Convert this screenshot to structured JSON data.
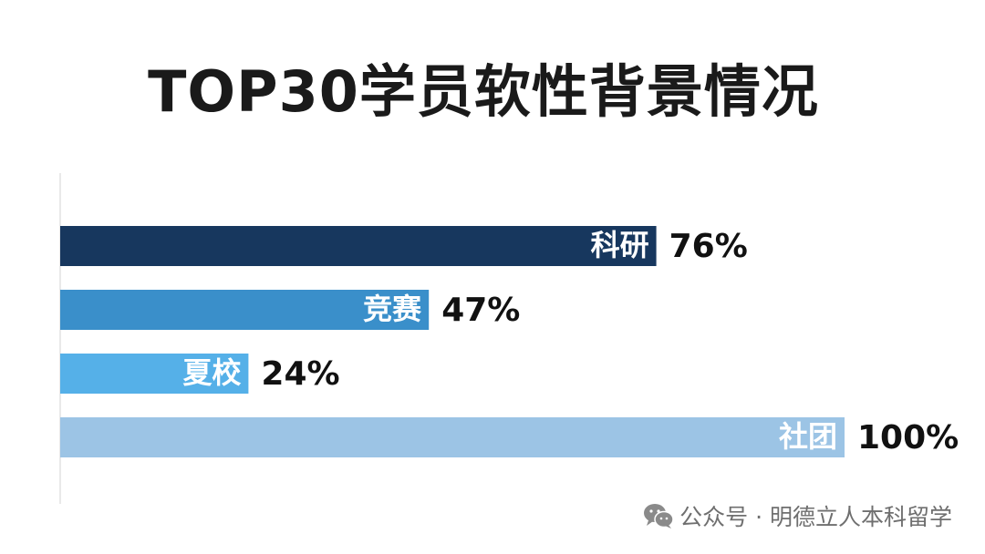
{
  "title": "TOP30学员软性背景情况",
  "chart_data": {
    "type": "bar",
    "orientation": "horizontal",
    "title": "TOP30学员软性背景情况",
    "categories": [
      "科研",
      "竞赛",
      "夏校",
      "社团"
    ],
    "values": [
      76,
      47,
      24,
      100
    ],
    "value_labels": [
      "76%",
      "47%",
      "24%",
      "100%"
    ],
    "unit": "%",
    "xlim": [
      0,
      100
    ],
    "grid": false,
    "legend": "none",
    "colors": [
      "#17375e",
      "#3a8fca",
      "#55b0e8",
      "#9cc4e5"
    ]
  },
  "watermark": {
    "icon": "wechat-icon",
    "text": "公众号 · 明德立人本科留学"
  }
}
